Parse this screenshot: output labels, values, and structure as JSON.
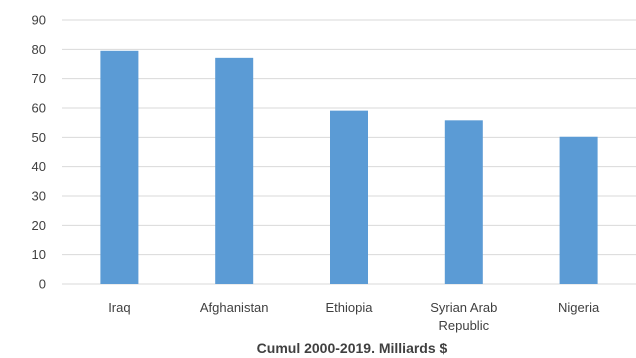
{
  "chart_data": {
    "type": "bar",
    "title": "Cumul 2000-2019. Milliards $",
    "xlabel": "",
    "ylabel": "",
    "categories": [
      [
        "Iraq"
      ],
      [
        "Afghanistan"
      ],
      [
        "Ethiopia"
      ],
      [
        "Syrian Arab",
        "Republic"
      ],
      [
        "Nigeria"
      ]
    ],
    "values": [
      79.5,
      77.1,
      59.1,
      55.8,
      50.2
    ],
    "ylim": [
      0,
      90
    ],
    "yticks": [
      0,
      10,
      20,
      30,
      40,
      50,
      60,
      70,
      80,
      90
    ],
    "grid": true,
    "legend": "none",
    "bar_color": "#5b9bd5"
  }
}
